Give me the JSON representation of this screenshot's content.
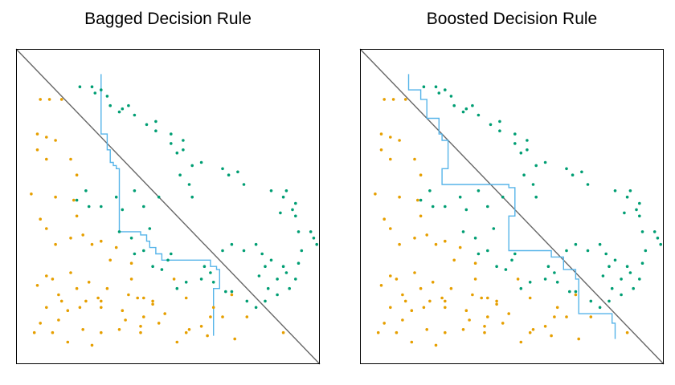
{
  "colors": {
    "class0": "#e69f00",
    "class1": "#009e73",
    "rule": "#56b4e9",
    "diagonal": "#666666"
  },
  "chart_data": [
    {
      "type": "scatter",
      "title": "Bagged Decision Rule",
      "xlim": [
        0,
        1
      ],
      "ylim": [
        0,
        1
      ],
      "grid": false,
      "legend": "none",
      "series": [
        {
          "class": 0,
          "color": "#e69f00",
          "x": [
            0.08,
            0.11,
            0.15,
            0.07,
            0.1,
            0.13,
            0.07,
            0.1,
            0.18,
            0.2,
            0.05,
            0.13,
            0.19,
            0.2,
            0.08,
            0.1,
            0.22,
            0.28,
            0.33,
            0.31,
            0.38,
            0.13,
            0.18,
            0.25,
            0.1,
            0.12,
            0.14,
            0.18,
            0.3,
            0.37,
            0.4,
            0.42,
            0.28,
            0.45,
            0.1,
            0.15,
            0.21,
            0.27,
            0.42,
            0.56,
            0.68,
            0.07,
            0.2,
            0.24,
            0.28,
            0.38,
            0.45,
            0.52,
            0.65,
            0.71,
            0.17,
            0.23,
            0.35,
            0.41,
            0.49,
            0.57,
            0.64,
            0.76,
            0.08,
            0.14,
            0.22,
            0.28,
            0.34,
            0.41,
            0.56,
            0.61,
            0.72,
            0.88,
            0.06,
            0.12,
            0.17,
            0.25,
            0.36,
            0.47,
            0.53,
            0.63
          ],
          "y": [
            0.84,
            0.84,
            0.84,
            0.73,
            0.72,
            0.71,
            0.68,
            0.65,
            0.65,
            0.6,
            0.54,
            0.53,
            0.52,
            0.47,
            0.46,
            0.43,
            0.41,
            0.39,
            0.37,
            0.33,
            0.32,
            0.38,
            0.4,
            0.38,
            0.28,
            0.27,
            0.22,
            0.29,
            0.24,
            0.22,
            0.21,
            0.21,
            0.18,
            0.2,
            0.18,
            0.2,
            0.18,
            0.21,
            0.15,
            0.21,
            0.15,
            0.25,
            0.24,
            0.26,
            0.2,
            0.27,
            0.19,
            0.27,
            0.18,
            0.22,
            0.17,
            0.2,
            0.17,
            0.12,
            0.16,
            0.11,
            0.15,
            0.15,
            0.13,
            0.14,
            0.11,
            0.1,
            0.11,
            0.1,
            0.1,
            0.12,
            0.08,
            0.1,
            0.1,
            0.1,
            0.07,
            0.06,
            0.14,
            0.13,
            0.07,
            0.09
          ]
        },
        {
          "class": 1,
          "color": "#009e73",
          "x": [
            0.21,
            0.25,
            0.28,
            0.26,
            0.3,
            0.31,
            0.34,
            0.35,
            0.37,
            0.39,
            0.46,
            0.43,
            0.46,
            0.51,
            0.55,
            0.51,
            0.53,
            0.55,
            0.58,
            0.61,
            0.68,
            0.7,
            0.73,
            0.75,
            0.84,
            0.88,
            0.89,
            0.92,
            0.91,
            0.87,
            0.92,
            0.93,
            0.97,
            0.98,
            0.99,
            0.79,
            0.81,
            0.84,
            0.88,
            0.89,
            0.86,
            0.92,
            0.86,
            0.82,
            0.79,
            0.76,
            0.71,
            0.69,
            0.65,
            0.61,
            0.56,
            0.53,
            0.48,
            0.45,
            0.42,
            0.38,
            0.39,
            0.34,
            0.28,
            0.24,
            0.23,
            0.2,
            0.54,
            0.57,
            0.58,
            0.47,
            0.42,
            0.39,
            0.44,
            0.35,
            0.33,
            0.5,
            0.51,
            0.62,
            0.64,
            0.68,
            0.71,
            0.75,
            0.82,
            0.9,
            0.8,
            0.83,
            0.93,
            0.94
          ],
          "y": [
            0.88,
            0.88,
            0.87,
            0.86,
            0.85,
            0.82,
            0.8,
            0.81,
            0.82,
            0.79,
            0.77,
            0.76,
            0.74,
            0.73,
            0.71,
            0.7,
            0.67,
            0.68,
            0.63,
            0.64,
            0.62,
            0.6,
            0.61,
            0.57,
            0.55,
            0.53,
            0.55,
            0.51,
            0.49,
            0.48,
            0.47,
            0.42,
            0.42,
            0.4,
            0.38,
            0.38,
            0.35,
            0.33,
            0.31,
            0.29,
            0.27,
            0.27,
            0.22,
            0.2,
            0.18,
            0.2,
            0.23,
            0.23,
            0.26,
            0.27,
            0.26,
            0.24,
            0.3,
            0.31,
            0.36,
            0.4,
            0.35,
            0.42,
            0.5,
            0.5,
            0.55,
            0.52,
            0.6,
            0.57,
            0.53,
            0.53,
            0.5,
            0.55,
            0.43,
            0.49,
            0.53,
            0.33,
            0.35,
            0.31,
            0.29,
            0.36,
            0.38,
            0.36,
            0.31,
            0.24,
            0.28,
            0.24,
            0.32,
            0.36
          ]
        }
      ],
      "decision_boundary": {
        "x": [
          0.28,
          0.28,
          0.3,
          0.3,
          0.31,
          0.31,
          0.32,
          0.32,
          0.33,
          0.33,
          0.34,
          0.34,
          0.41,
          0.41,
          0.43,
          0.43,
          0.44,
          0.44,
          0.46,
          0.46,
          0.48,
          0.48,
          0.48,
          0.52,
          0.52,
          0.64,
          0.64,
          0.66,
          0.66,
          0.67,
          0.67,
          0.65,
          0.65
        ],
        "y": [
          0.92,
          0.73,
          0.73,
          0.68,
          0.68,
          0.64,
          0.64,
          0.63,
          0.63,
          0.62,
          0.62,
          0.42,
          0.42,
          0.41,
          0.41,
          0.39,
          0.39,
          0.37,
          0.37,
          0.35,
          0.35,
          0.35,
          0.33,
          0.33,
          0.33,
          0.33,
          0.31,
          0.31,
          0.3,
          0.3,
          0.24,
          0.24,
          0.09
        ]
      }
    },
    {
      "type": "scatter",
      "title": "Boosted Decision Rule",
      "xlim": [
        0,
        1
      ],
      "ylim": [
        0,
        1
      ],
      "grid": false,
      "legend": "none",
      "series": [
        {
          "class": 0,
          "color": "#e69f00",
          "x": [
            0.08,
            0.11,
            0.15,
            0.07,
            0.1,
            0.13,
            0.07,
            0.1,
            0.18,
            0.2,
            0.05,
            0.13,
            0.19,
            0.2,
            0.08,
            0.1,
            0.22,
            0.28,
            0.33,
            0.31,
            0.38,
            0.13,
            0.18,
            0.25,
            0.1,
            0.12,
            0.14,
            0.18,
            0.3,
            0.37,
            0.4,
            0.42,
            0.28,
            0.45,
            0.1,
            0.15,
            0.21,
            0.27,
            0.42,
            0.56,
            0.68,
            0.07,
            0.2,
            0.24,
            0.28,
            0.38,
            0.45,
            0.52,
            0.65,
            0.71,
            0.17,
            0.23,
            0.35,
            0.41,
            0.49,
            0.57,
            0.64,
            0.76,
            0.08,
            0.14,
            0.22,
            0.28,
            0.34,
            0.41,
            0.56,
            0.61,
            0.72,
            0.88,
            0.06,
            0.12,
            0.17,
            0.25,
            0.36,
            0.47,
            0.53,
            0.63
          ],
          "y": [
            0.84,
            0.84,
            0.84,
            0.73,
            0.72,
            0.71,
            0.68,
            0.65,
            0.65,
            0.6,
            0.54,
            0.53,
            0.52,
            0.47,
            0.46,
            0.43,
            0.41,
            0.39,
            0.37,
            0.33,
            0.32,
            0.38,
            0.4,
            0.38,
            0.28,
            0.27,
            0.22,
            0.29,
            0.24,
            0.22,
            0.21,
            0.21,
            0.18,
            0.2,
            0.18,
            0.2,
            0.18,
            0.21,
            0.15,
            0.21,
            0.15,
            0.25,
            0.24,
            0.26,
            0.2,
            0.27,
            0.19,
            0.27,
            0.18,
            0.22,
            0.17,
            0.2,
            0.17,
            0.12,
            0.16,
            0.11,
            0.15,
            0.15,
            0.13,
            0.14,
            0.11,
            0.1,
            0.11,
            0.1,
            0.1,
            0.12,
            0.08,
            0.1,
            0.1,
            0.1,
            0.07,
            0.06,
            0.14,
            0.13,
            0.07,
            0.09
          ]
        },
        {
          "class": 1,
          "color": "#009e73",
          "x": [
            0.21,
            0.25,
            0.28,
            0.26,
            0.3,
            0.31,
            0.34,
            0.35,
            0.37,
            0.39,
            0.46,
            0.43,
            0.46,
            0.51,
            0.55,
            0.51,
            0.53,
            0.55,
            0.58,
            0.61,
            0.68,
            0.7,
            0.73,
            0.75,
            0.84,
            0.88,
            0.89,
            0.92,
            0.91,
            0.87,
            0.92,
            0.93,
            0.97,
            0.98,
            0.99,
            0.79,
            0.81,
            0.84,
            0.88,
            0.89,
            0.86,
            0.92,
            0.86,
            0.82,
            0.79,
            0.76,
            0.71,
            0.69,
            0.65,
            0.61,
            0.56,
            0.53,
            0.48,
            0.45,
            0.42,
            0.38,
            0.39,
            0.34,
            0.28,
            0.24,
            0.23,
            0.2,
            0.54,
            0.57,
            0.58,
            0.47,
            0.42,
            0.39,
            0.44,
            0.35,
            0.33,
            0.5,
            0.51,
            0.62,
            0.64,
            0.68,
            0.71,
            0.75,
            0.82,
            0.9,
            0.8,
            0.83,
            0.93,
            0.94
          ],
          "y": [
            0.88,
            0.88,
            0.87,
            0.86,
            0.85,
            0.82,
            0.8,
            0.81,
            0.82,
            0.79,
            0.77,
            0.76,
            0.74,
            0.73,
            0.71,
            0.7,
            0.67,
            0.68,
            0.63,
            0.64,
            0.62,
            0.6,
            0.61,
            0.57,
            0.55,
            0.53,
            0.55,
            0.51,
            0.49,
            0.48,
            0.47,
            0.42,
            0.42,
            0.4,
            0.38,
            0.38,
            0.35,
            0.33,
            0.31,
            0.29,
            0.27,
            0.27,
            0.22,
            0.2,
            0.18,
            0.2,
            0.23,
            0.23,
            0.26,
            0.27,
            0.26,
            0.24,
            0.3,
            0.31,
            0.36,
            0.4,
            0.35,
            0.42,
            0.5,
            0.5,
            0.55,
            0.52,
            0.6,
            0.57,
            0.53,
            0.53,
            0.5,
            0.55,
            0.43,
            0.49,
            0.53,
            0.33,
            0.35,
            0.31,
            0.29,
            0.36,
            0.38,
            0.36,
            0.31,
            0.24,
            0.28,
            0.24,
            0.32,
            0.36
          ]
        }
      ],
      "decision_boundary": {
        "x": [
          0.16,
          0.16,
          0.2,
          0.2,
          0.22,
          0.22,
          0.26,
          0.26,
          0.27,
          0.27,
          0.29,
          0.29,
          0.27,
          0.27,
          0.29,
          0.29,
          0.49,
          0.49,
          0.51,
          0.51,
          0.49,
          0.49,
          0.5,
          0.5,
          0.63,
          0.63,
          0.67,
          0.67,
          0.71,
          0.71,
          0.72,
          0.72,
          0.83,
          0.83,
          0.84,
          0.84
        ],
        "y": [
          0.92,
          0.87,
          0.87,
          0.84,
          0.84,
          0.78,
          0.78,
          0.73,
          0.73,
          0.71,
          0.71,
          0.62,
          0.62,
          0.57,
          0.57,
          0.57,
          0.57,
          0.56,
          0.56,
          0.47,
          0.47,
          0.36,
          0.36,
          0.36,
          0.36,
          0.34,
          0.34,
          0.3,
          0.3,
          0.27,
          0.27,
          0.16,
          0.16,
          0.13,
          0.13,
          0.08
        ]
      }
    }
  ]
}
